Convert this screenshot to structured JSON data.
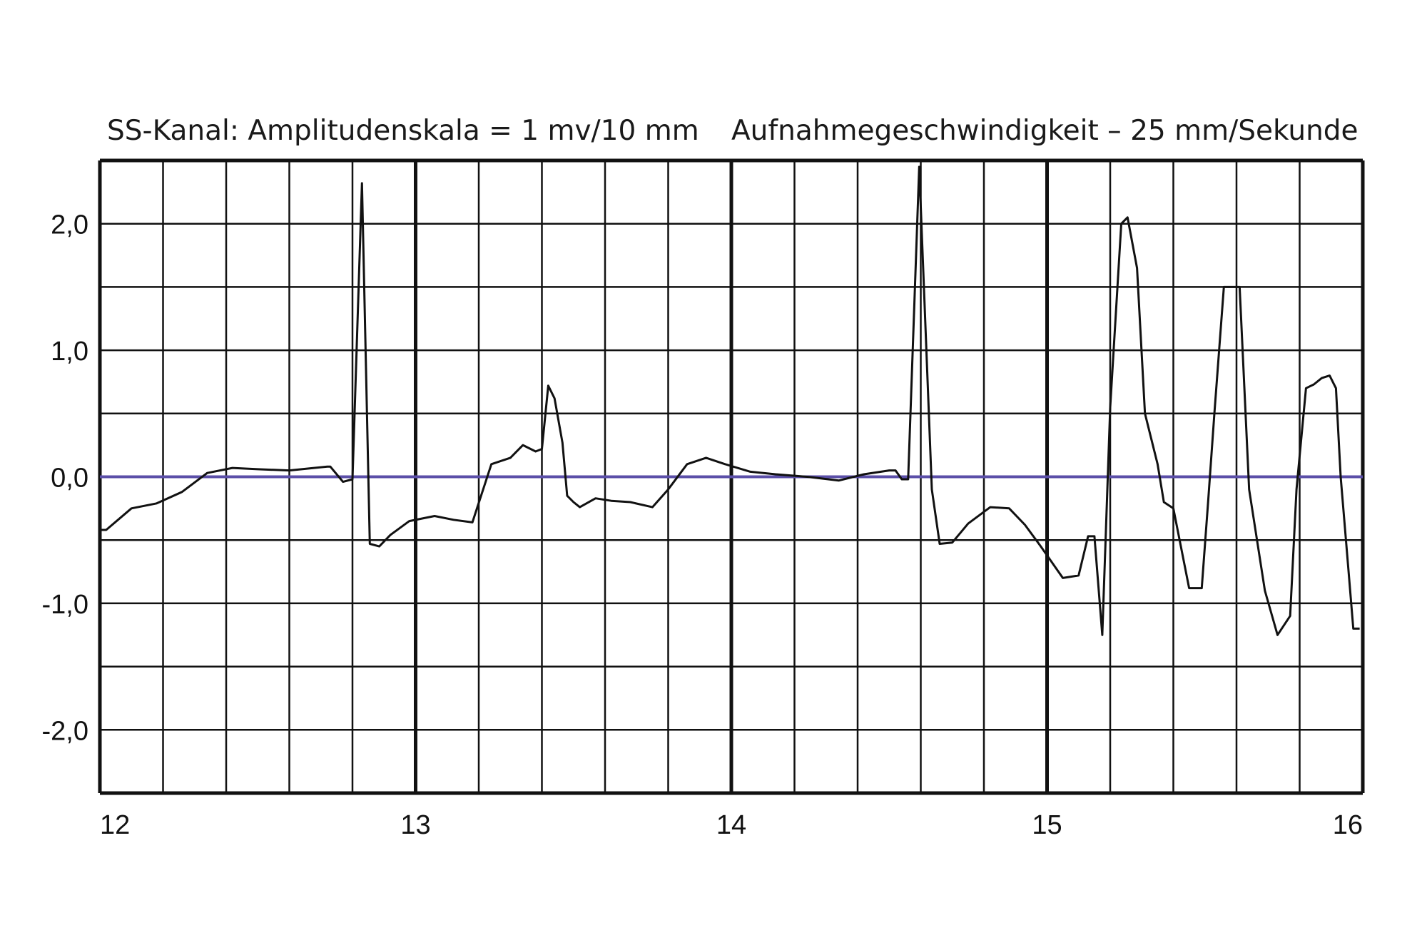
{
  "header": {
    "left": "SS-Kanal: Amplitudenskala = 1 mv/10 mm",
    "right": "Aufnahmegeschwindigkeit – 25 mm/Sekunde"
  },
  "chart_data": {
    "type": "line",
    "title": "",
    "xlabel": "",
    "ylabel": "",
    "xlim": [
      12,
      16
    ],
    "ylim": [
      -2.5,
      2.5
    ],
    "x_ticks": [
      12,
      13,
      14,
      15,
      16
    ],
    "x_tick_labels": [
      "12",
      "13",
      "14",
      "15",
      "16"
    ],
    "y_ticks": [
      2.0,
      1.0,
      0.0,
      -1.0,
      -2.0
    ],
    "y_tick_labels": [
      "2,0",
      "1,0",
      "0,0",
      "-1,0",
      "-2,0"
    ],
    "grid": true,
    "grid_minor_step_x": 0.2,
    "grid_minor_step_y": 0.5,
    "colors": {
      "trace": "#111111",
      "baseline": "#5b4fa8",
      "grid": "#111111"
    },
    "baseline_y": 0.0,
    "series": [
      {
        "name": "",
        "x": [
          12.0,
          12.02,
          12.1,
          12.18,
          12.26,
          12.34,
          12.42,
          12.5,
          12.6,
          12.72,
          12.73,
          12.77,
          12.8,
          12.83,
          12.855,
          12.885,
          12.92,
          12.98,
          13.06,
          13.12,
          13.18,
          13.24,
          13.3,
          13.34,
          13.38,
          13.4,
          13.42,
          13.44,
          13.465,
          13.48,
          13.5,
          13.52,
          13.57,
          13.62,
          13.68,
          13.75,
          13.8,
          13.86,
          13.92,
          13.98,
          14.06,
          14.14,
          14.24,
          14.34,
          14.42,
          14.5,
          14.52,
          14.54,
          14.56,
          14.595,
          14.635,
          14.66,
          14.7,
          14.75,
          14.82,
          14.88,
          14.93,
          14.98,
          15.05,
          15.1,
          15.13,
          15.15,
          15.175,
          15.2,
          15.235,
          15.255,
          15.285,
          15.31,
          15.35,
          15.37,
          15.4,
          15.45,
          15.49,
          15.51,
          15.53,
          15.56,
          15.61,
          15.64,
          15.69,
          15.73,
          15.77,
          15.79,
          15.82,
          15.845,
          15.87,
          15.895,
          15.915,
          15.93,
          15.955,
          15.97,
          15.99
        ],
        "y": [
          -0.42,
          -0.42,
          -0.25,
          -0.21,
          -0.12,
          0.03,
          0.07,
          0.06,
          0.05,
          0.08,
          0.08,
          -0.04,
          -0.02,
          2.32,
          -0.53,
          -0.55,
          -0.46,
          -0.35,
          -0.31,
          -0.34,
          -0.36,
          0.1,
          0.15,
          0.25,
          0.2,
          0.22,
          0.72,
          0.62,
          0.27,
          -0.15,
          -0.2,
          -0.24,
          -0.17,
          -0.19,
          -0.2,
          -0.24,
          -0.1,
          0.1,
          0.15,
          0.1,
          0.04,
          0.02,
          0.0,
          -0.03,
          0.02,
          0.05,
          0.05,
          -0.02,
          -0.02,
          2.45,
          -0.1,
          -0.53,
          -0.52,
          -0.37,
          -0.24,
          -0.25,
          -0.38,
          -0.55,
          -0.8,
          -0.78,
          -0.47,
          -0.47,
          -1.25,
          0.55,
          2.0,
          2.05,
          1.65,
          0.5,
          0.1,
          -0.2,
          -0.25,
          -0.88,
          -0.88,
          -0.2,
          0.5,
          1.5,
          1.5,
          -0.1,
          -0.9,
          -1.25,
          -1.1,
          -0.1,
          0.7,
          0.73,
          0.78,
          0.8,
          0.7,
          0.0,
          -0.75,
          -1.2,
          -1.2
        ]
      }
    ]
  }
}
